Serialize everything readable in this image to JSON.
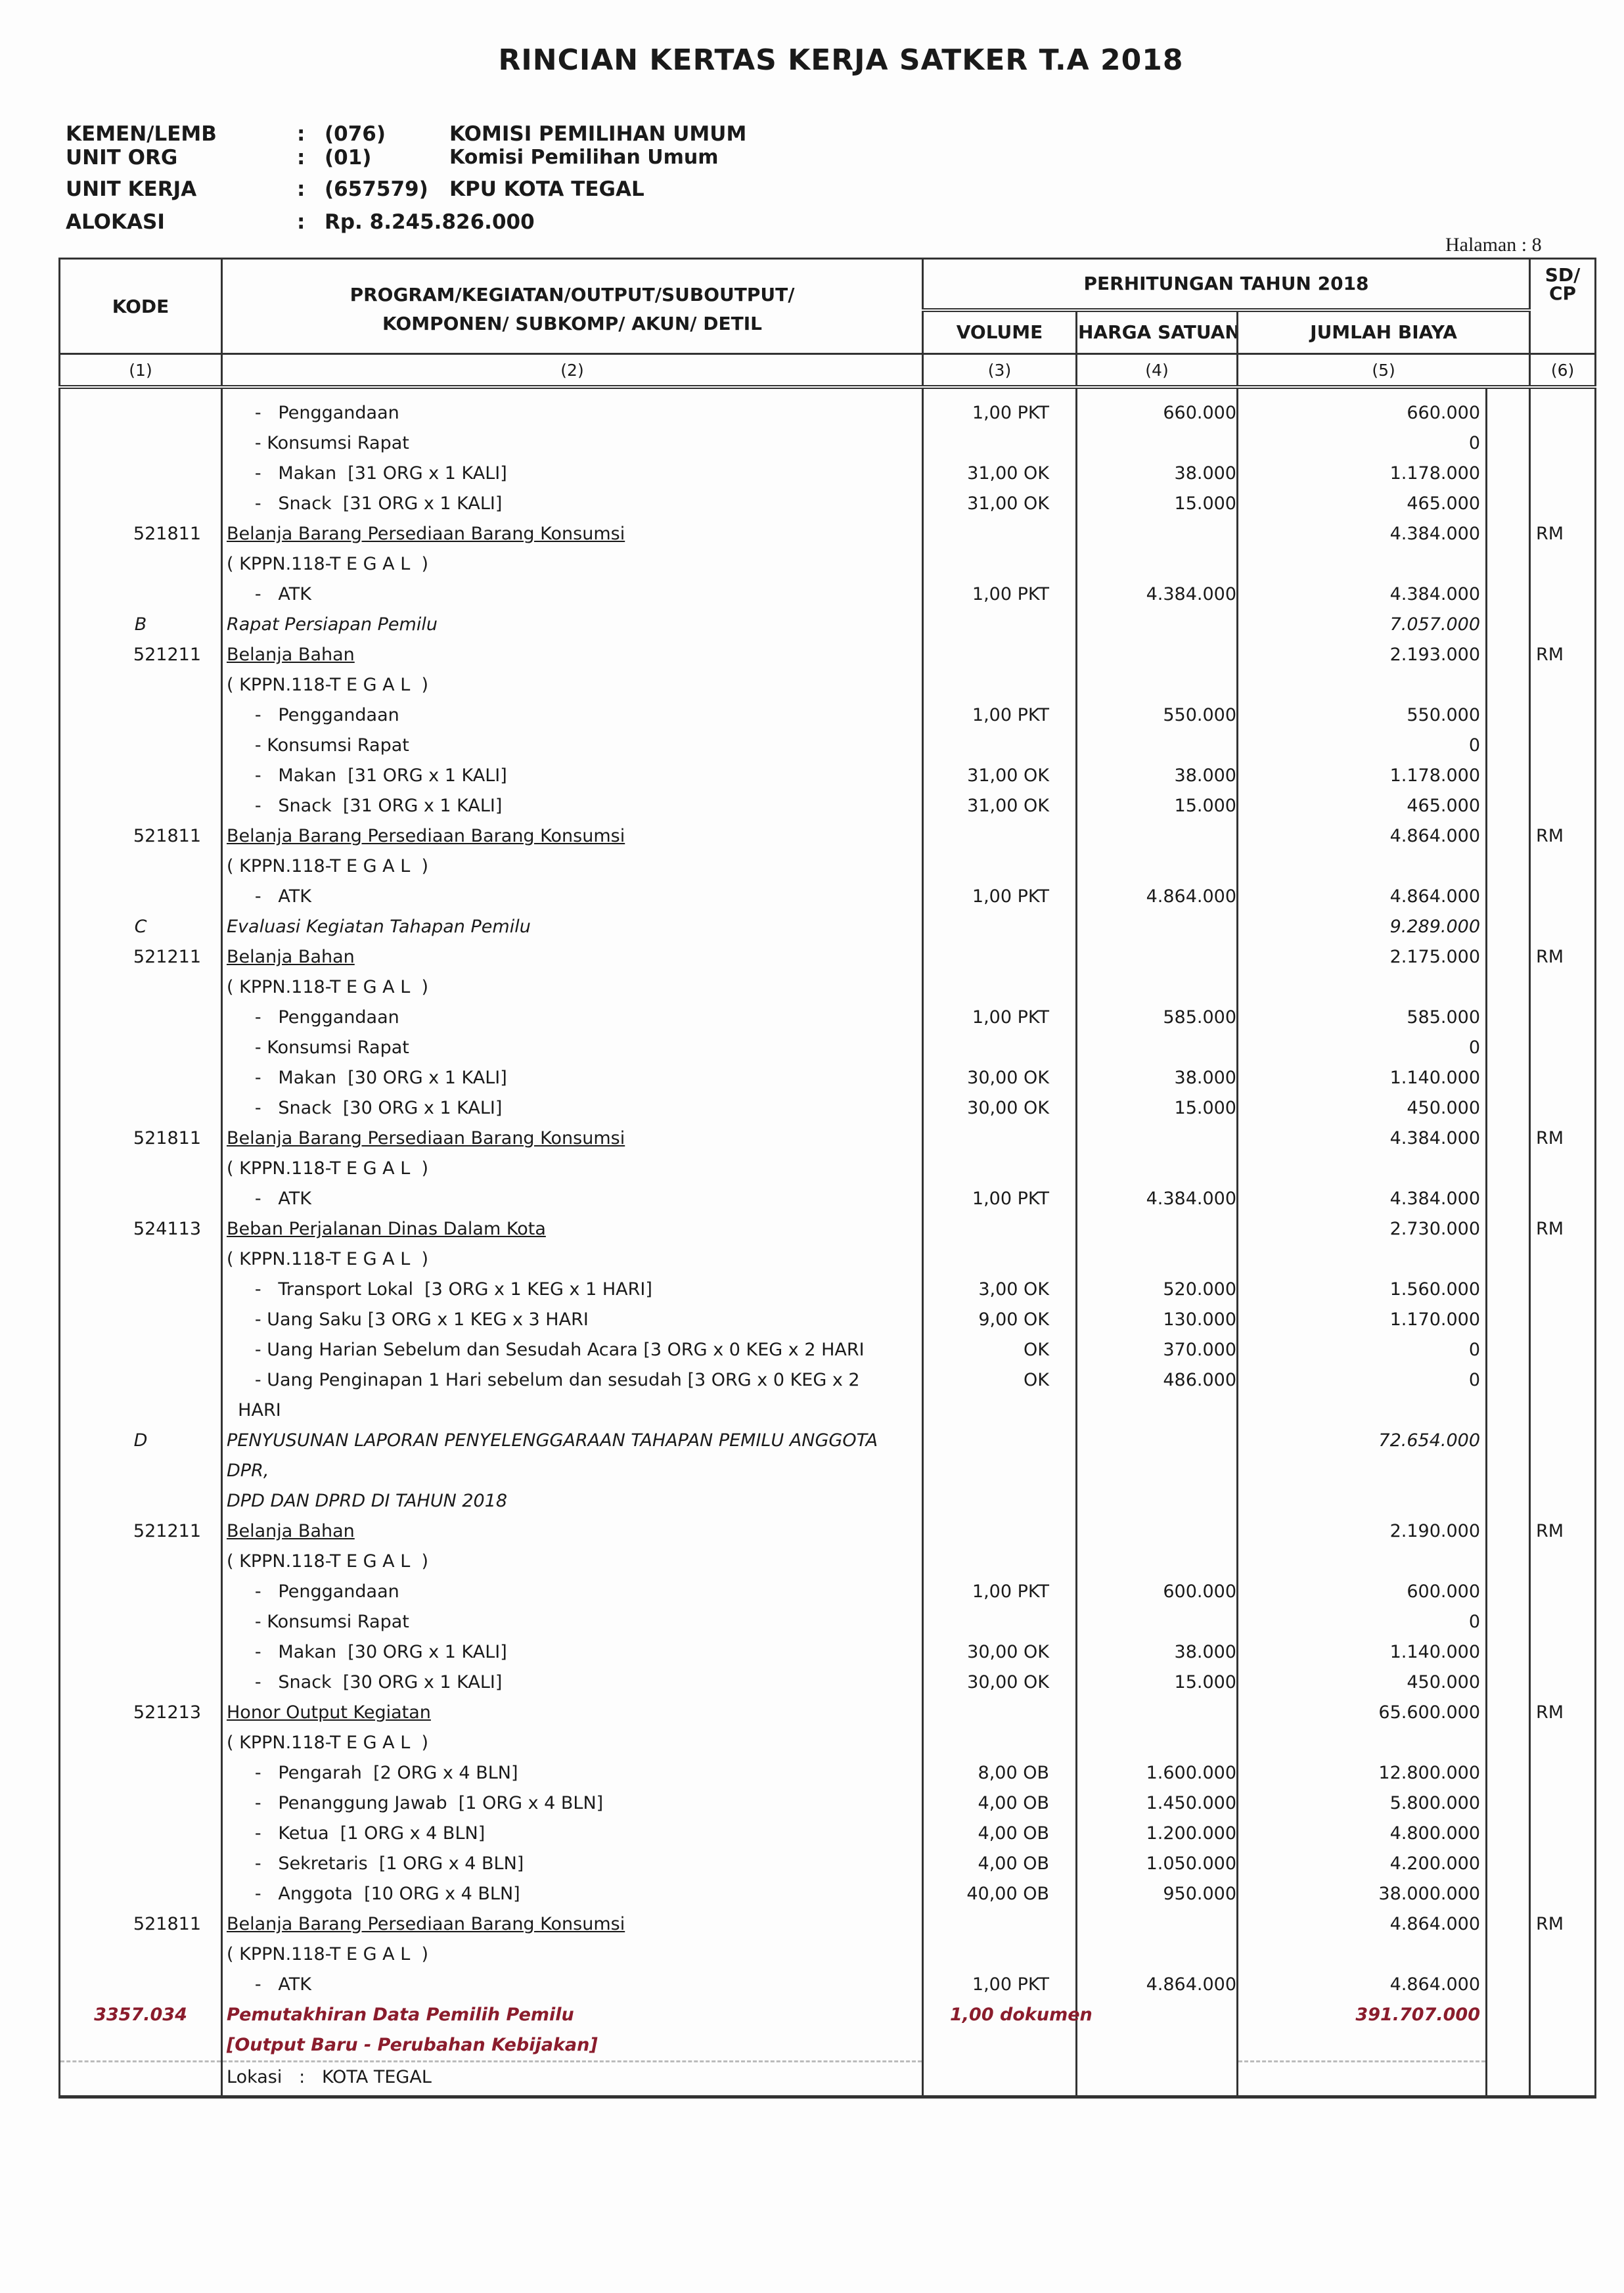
{
  "title": "RINCIAN KERTAS KERJA SATKER T.A 2018",
  "info": [
    {
      "label": "KEMEN/LEMB",
      "code": "(076)",
      "name": "KOMISI PEMILIHAN UMUM"
    },
    {
      "label": "UNIT ORG",
      "code": "(01)",
      "name": "Komisi Pemilihan Umum"
    },
    {
      "label": "UNIT KERJA",
      "code": "(657579)",
      "name": "KPU  KOTA TEGAL"
    },
    {
      "label": "ALOKASI",
      "code": "Rp.  8.245.826.000",
      "name": ""
    }
  ],
  "colon": ":",
  "halaman": "Halaman  :  8",
  "headers": {
    "kode": "KODE",
    "program": "PROGRAM/KEGIATAN/OUTPUT/SUBOUTPUT/\nKOMPONEN/ SUBKOMP/ AKUN/ DETIL",
    "perhitungan": "PERHITUNGAN TAHUN 2018",
    "volume": "VOLUME",
    "harga": "HARGA SATUAN",
    "jumlah": "JUMLAH BIAYA",
    "sd": "SD/\nCP",
    "n1": "(1)",
    "n2": "(2)",
    "n3": "(3)",
    "n4": "(4)",
    "n5": "(5)",
    "n6": "(6)"
  },
  "rows": [
    {
      "t": "item",
      "kode": "",
      "desc": "     -   Penggandaan",
      "vol": "1,00 PKT",
      "harga": "660.000",
      "jml": "660.000",
      "sd": ""
    },
    {
      "t": "item",
      "kode": "",
      "desc": "     - Konsumsi Rapat",
      "vol": "",
      "harga": "",
      "jml": "0",
      "sd": ""
    },
    {
      "t": "item",
      "kode": "",
      "desc": "     -   Makan  [31 ORG x 1 KALI]",
      "vol": "31,00 OK",
      "harga": "38.000",
      "jml": "1.178.000",
      "sd": ""
    },
    {
      "t": "item",
      "kode": "",
      "desc": "     -   Snack  [31 ORG x 1 KALI]",
      "vol": "31,00 OK",
      "harga": "15.000",
      "jml": "465.000",
      "sd": ""
    },
    {
      "t": "akun",
      "kode": "521811",
      "desc": "Belanja Barang Persediaan Barang Konsumsi",
      "vol": "",
      "harga": "",
      "jml": "4.384.000",
      "sd": "RM"
    },
    {
      "t": "item",
      "kode": "",
      "desc": "( KPPN.118-T E G A L  )",
      "vol": "",
      "harga": "",
      "jml": "",
      "sd": ""
    },
    {
      "t": "item",
      "kode": "",
      "desc": "     -   ATK",
      "vol": "1,00 PKT",
      "harga": "4.384.000",
      "jml": "4.384.000",
      "sd": ""
    },
    {
      "t": "komp",
      "kode": "B",
      "desc": "Rapat Persiapan Pemilu",
      "vol": "",
      "harga": "",
      "jml": "7.057.000",
      "sd": ""
    },
    {
      "t": "akun",
      "kode": "521211",
      "desc": "Belanja Bahan",
      "vol": "",
      "harga": "",
      "jml": "2.193.000",
      "sd": "RM"
    },
    {
      "t": "item",
      "kode": "",
      "desc": "( KPPN.118-T E G A L  )",
      "vol": "",
      "harga": "",
      "jml": "",
      "sd": ""
    },
    {
      "t": "item",
      "kode": "",
      "desc": "     -   Penggandaan",
      "vol": "1,00 PKT",
      "harga": "550.000",
      "jml": "550.000",
      "sd": ""
    },
    {
      "t": "item",
      "kode": "",
      "desc": "     - Konsumsi Rapat",
      "vol": "",
      "harga": "",
      "jml": "0",
      "sd": ""
    },
    {
      "t": "item",
      "kode": "",
      "desc": "     -   Makan  [31 ORG x 1 KALI]",
      "vol": "31,00 OK",
      "harga": "38.000",
      "jml": "1.178.000",
      "sd": ""
    },
    {
      "t": "item",
      "kode": "",
      "desc": "     -   Snack  [31 ORG x 1 KALI]",
      "vol": "31,00 OK",
      "harga": "15.000",
      "jml": "465.000",
      "sd": ""
    },
    {
      "t": "akun",
      "kode": "521811",
      "desc": "Belanja Barang Persediaan Barang Konsumsi",
      "vol": "",
      "harga": "",
      "jml": "4.864.000",
      "sd": "RM"
    },
    {
      "t": "item",
      "kode": "",
      "desc": "( KPPN.118-T E G A L  )",
      "vol": "",
      "harga": "",
      "jml": "",
      "sd": ""
    },
    {
      "t": "item",
      "kode": "",
      "desc": "     -   ATK",
      "vol": "1,00 PKT",
      "harga": "4.864.000",
      "jml": "4.864.000",
      "sd": ""
    },
    {
      "t": "komp",
      "kode": "C",
      "desc": "Evaluasi Kegiatan Tahapan Pemilu",
      "vol": "",
      "harga": "",
      "jml": "9.289.000",
      "sd": ""
    },
    {
      "t": "akun",
      "kode": "521211",
      "desc": "Belanja Bahan",
      "vol": "",
      "harga": "",
      "jml": "2.175.000",
      "sd": "RM"
    },
    {
      "t": "item",
      "kode": "",
      "desc": "( KPPN.118-T E G A L  )",
      "vol": "",
      "harga": "",
      "jml": "",
      "sd": ""
    },
    {
      "t": "item",
      "kode": "",
      "desc": "     -   Penggandaan",
      "vol": "1,00 PKT",
      "harga": "585.000",
      "jml": "585.000",
      "sd": ""
    },
    {
      "t": "item",
      "kode": "",
      "desc": "     - Konsumsi Rapat",
      "vol": "",
      "harga": "",
      "jml": "0",
      "sd": ""
    },
    {
      "t": "item",
      "kode": "",
      "desc": "     -   Makan  [30 ORG x 1 KALI]",
      "vol": "30,00 OK",
      "harga": "38.000",
      "jml": "1.140.000",
      "sd": ""
    },
    {
      "t": "item",
      "kode": "",
      "desc": "     -   Snack  [30 ORG x 1 KALI]",
      "vol": "30,00 OK",
      "harga": "15.000",
      "jml": "450.000",
      "sd": ""
    },
    {
      "t": "akun",
      "kode": "521811",
      "desc": "Belanja Barang Persediaan Barang Konsumsi",
      "vol": "",
      "harga": "",
      "jml": "4.384.000",
      "sd": "RM"
    },
    {
      "t": "item",
      "kode": "",
      "desc": "( KPPN.118-T E G A L  )",
      "vol": "",
      "harga": "",
      "jml": "",
      "sd": ""
    },
    {
      "t": "item",
      "kode": "",
      "desc": "     -   ATK",
      "vol": "1,00 PKT",
      "harga": "4.384.000",
      "jml": "4.384.000",
      "sd": ""
    },
    {
      "t": "akun",
      "kode": "524113",
      "desc": "Beban Perjalanan Dinas Dalam Kota",
      "vol": "",
      "harga": "",
      "jml": "2.730.000",
      "sd": "RM"
    },
    {
      "t": "item",
      "kode": "",
      "desc": "( KPPN.118-T E G A L  )",
      "vol": "",
      "harga": "",
      "jml": "",
      "sd": ""
    },
    {
      "t": "item",
      "kode": "",
      "desc": "     -   Transport Lokal  [3 ORG x 1 KEG x 1 HARI]",
      "vol": "3,00 OK",
      "harga": "520.000",
      "jml": "1.560.000",
      "sd": ""
    },
    {
      "t": "item",
      "kode": "",
      "desc": "     - Uang Saku [3 ORG x 1 KEG x 3 HARI",
      "vol": "9,00 OK",
      "harga": "130.000",
      "jml": "1.170.000",
      "sd": ""
    },
    {
      "t": "item",
      "kode": "",
      "desc": "     - Uang Harian Sebelum dan Sesudah Acara [3 ORG x 0 KEG x 2 HARI",
      "vol": "OK",
      "harga": "370.000",
      "jml": "0",
      "sd": ""
    },
    {
      "t": "item",
      "kode": "",
      "desc": "     - Uang Penginapan 1 Hari sebelum dan sesudah [3 ORG x 0 KEG x 2\n  HARI",
      "vol": "OK",
      "harga": "486.000",
      "jml": "0",
      "sd": ""
    },
    {
      "t": "komp",
      "kode": "D",
      "desc": "PENYUSUNAN LAPORAN PENYELENGGARAAN TAHAPAN PEMILU ANGGOTA DPR,\nDPD DAN DPRD DI TAHUN 2018",
      "vol": "",
      "harga": "",
      "jml": "72.654.000",
      "sd": ""
    },
    {
      "t": "akun",
      "kode": "521211",
      "desc": "Belanja Bahan",
      "vol": "",
      "harga": "",
      "jml": "2.190.000",
      "sd": "RM"
    },
    {
      "t": "item",
      "kode": "",
      "desc": "( KPPN.118-T E G A L  )",
      "vol": "",
      "harga": "",
      "jml": "",
      "sd": ""
    },
    {
      "t": "item",
      "kode": "",
      "desc": "     -   Penggandaan",
      "vol": "1,00 PKT",
      "harga": "600.000",
      "jml": "600.000",
      "sd": ""
    },
    {
      "t": "item",
      "kode": "",
      "desc": "     - Konsumsi Rapat",
      "vol": "",
      "harga": "",
      "jml": "0",
      "sd": ""
    },
    {
      "t": "item",
      "kode": "",
      "desc": "     -   Makan  [30 ORG x 1 KALI]",
      "vol": "30,00 OK",
      "harga": "38.000",
      "jml": "1.140.000",
      "sd": ""
    },
    {
      "t": "item",
      "kode": "",
      "desc": "     -   Snack  [30 ORG x 1 KALI]",
      "vol": "30,00 OK",
      "harga": "15.000",
      "jml": "450.000",
      "sd": ""
    },
    {
      "t": "akun",
      "kode": "521213",
      "desc": "Honor Output Kegiatan",
      "vol": "",
      "harga": "",
      "jml": "65.600.000",
      "sd": "RM"
    },
    {
      "t": "item",
      "kode": "",
      "desc": "( KPPN.118-T E G A L  )",
      "vol": "",
      "harga": "",
      "jml": "",
      "sd": ""
    },
    {
      "t": "item",
      "kode": "",
      "desc": "     -   Pengarah  [2 ORG x 4 BLN]",
      "vol": "8,00 OB",
      "harga": "1.600.000",
      "jml": "12.800.000",
      "sd": ""
    },
    {
      "t": "item",
      "kode": "",
      "desc": "     -   Penanggung Jawab  [1 ORG x 4 BLN]",
      "vol": "4,00 OB",
      "harga": "1.450.000",
      "jml": "5.800.000",
      "sd": ""
    },
    {
      "t": "item",
      "kode": "",
      "desc": "     -   Ketua  [1 ORG x 4 BLN]",
      "vol": "4,00 OB",
      "harga": "1.200.000",
      "jml": "4.800.000",
      "sd": ""
    },
    {
      "t": "item",
      "kode": "",
      "desc": "     -   Sekretaris  [1 ORG x 4 BLN]",
      "vol": "4,00 OB",
      "harga": "1.050.000",
      "jml": "4.200.000",
      "sd": ""
    },
    {
      "t": "item",
      "kode": "",
      "desc": "     -   Anggota  [10 ORG x 4 BLN]",
      "vol": "40,00 OB",
      "harga": "950.000",
      "jml": "38.000.000",
      "sd": ""
    },
    {
      "t": "akun",
      "kode": "521811",
      "desc": "Belanja Barang Persediaan Barang Konsumsi",
      "vol": "",
      "harga": "",
      "jml": "4.864.000",
      "sd": "RM"
    },
    {
      "t": "item",
      "kode": "",
      "desc": "( KPPN.118-T E G A L  )",
      "vol": "",
      "harga": "",
      "jml": "",
      "sd": ""
    },
    {
      "t": "item",
      "kode": "",
      "desc": "     -   ATK",
      "vol": "1,00 PKT",
      "harga": "4.864.000",
      "jml": "4.864.000",
      "sd": ""
    },
    {
      "t": "out",
      "kode": "3357.034",
      "desc": "Pemutakhiran Data Pemilih Pemilu\n[Output Baru - Perubahan Kebijakan]",
      "vol": "1,00 dokumen",
      "harga": "",
      "jml": "391.707.000",
      "sd": ""
    },
    {
      "t": "lok",
      "kode": "",
      "desc": "Lokasi   :   KOTA TEGAL",
      "vol": "",
      "harga": "",
      "jml": "",
      "sd": ""
    }
  ],
  "colors": {
    "output": "#8a1c2c",
    "lines": "#333333"
  }
}
